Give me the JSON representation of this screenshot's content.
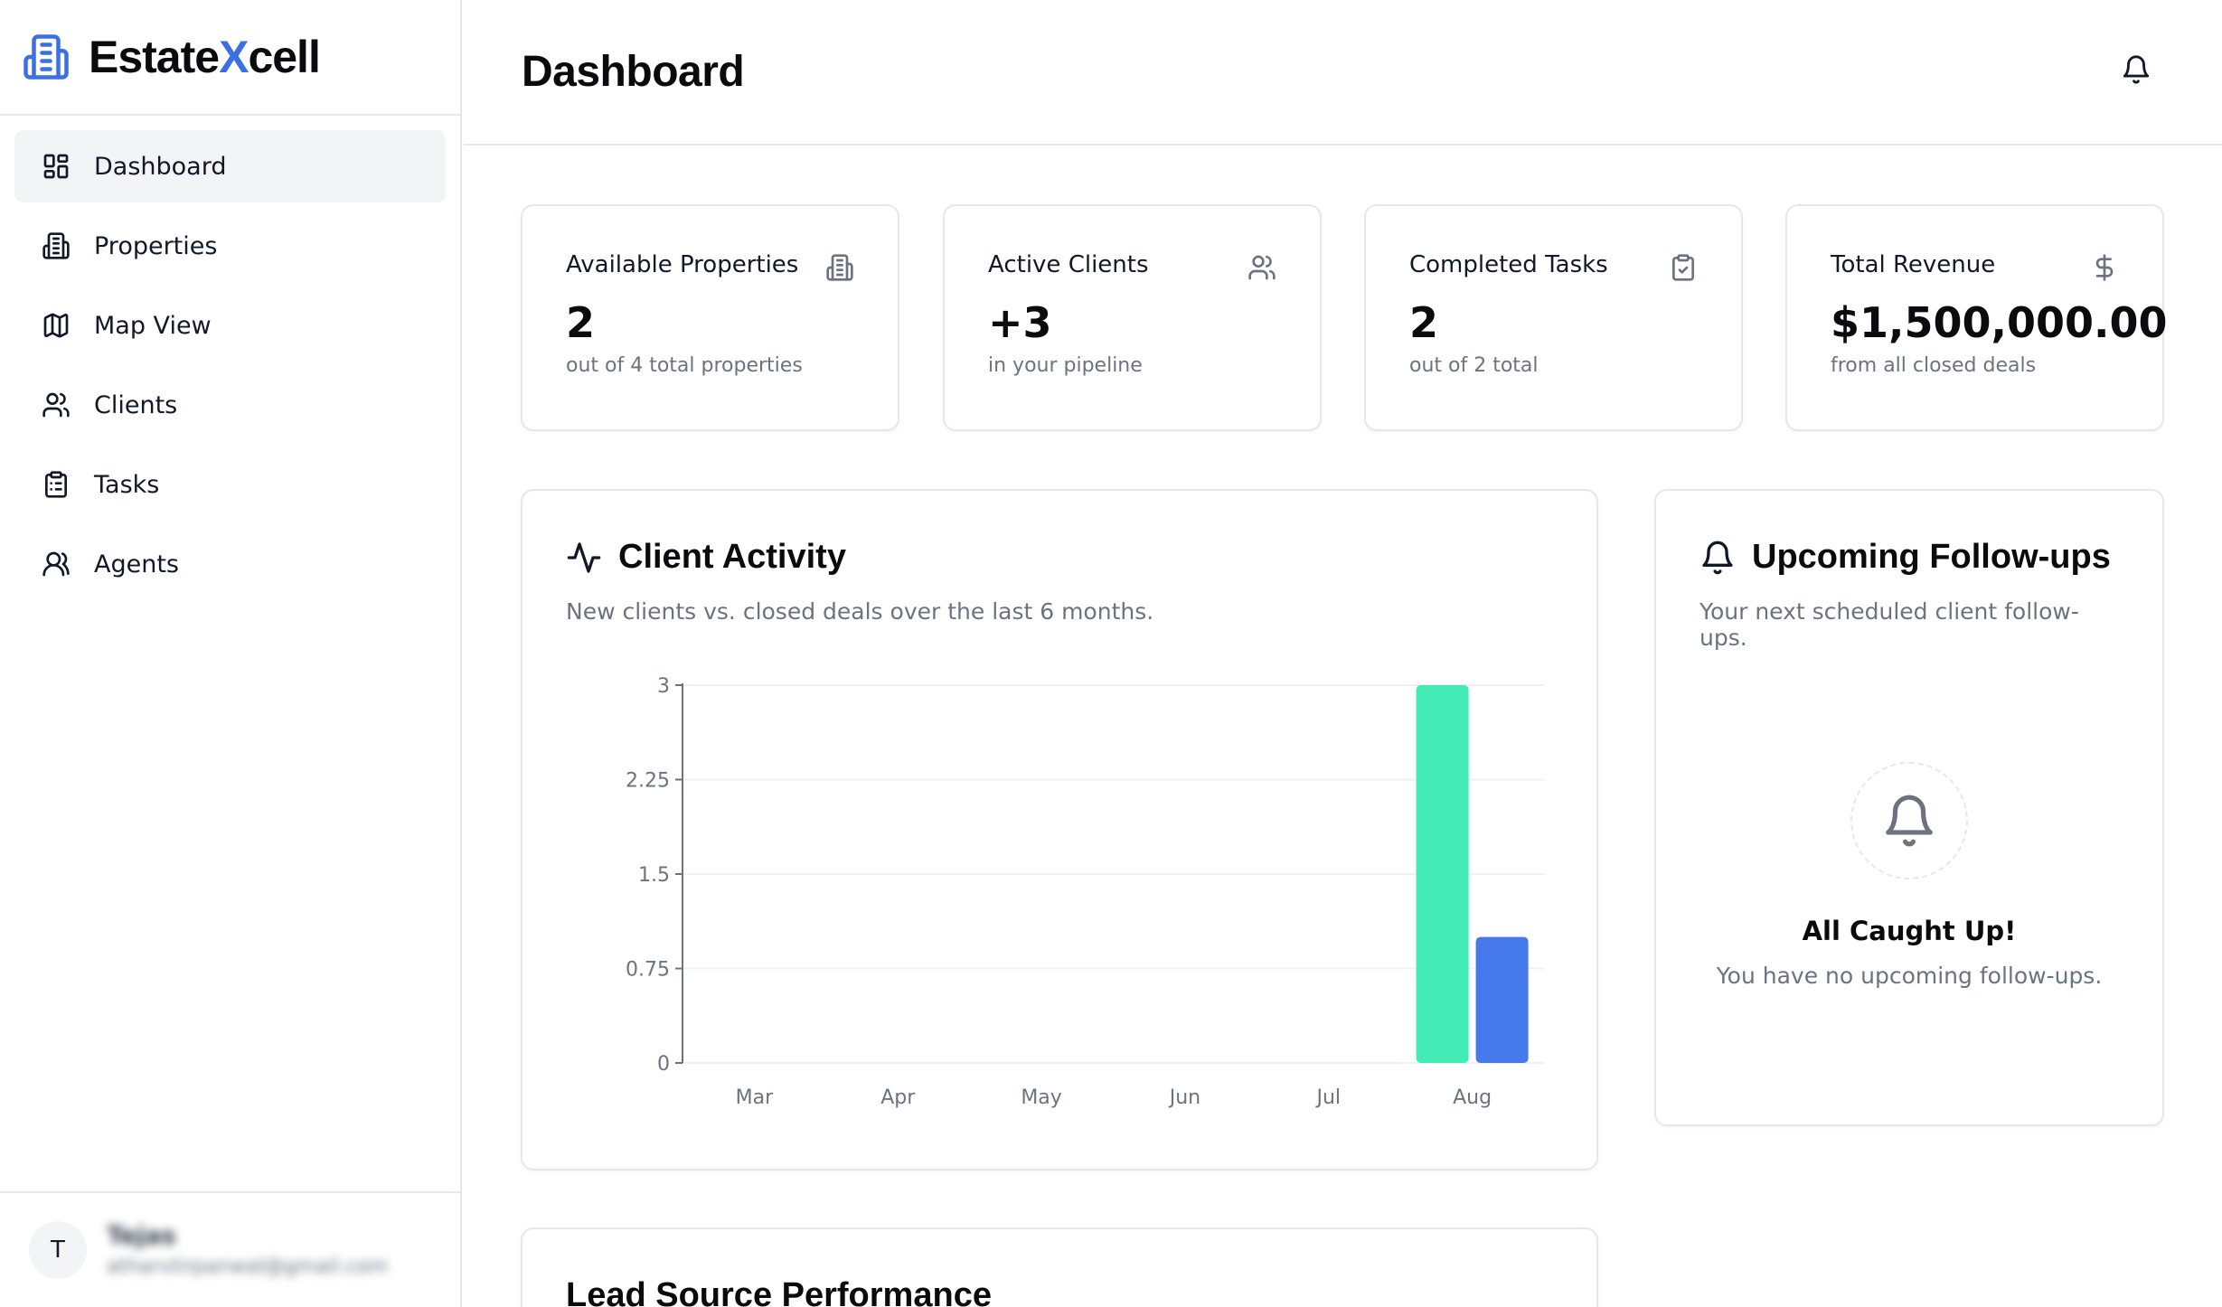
{
  "brand": {
    "name_prefix": "Estate",
    "name_x": "X",
    "name_suffix": "cell"
  },
  "sidebar": {
    "items": [
      {
        "label": "Dashboard",
        "icon": "dashboard-icon",
        "active": true
      },
      {
        "label": "Properties",
        "icon": "building-icon"
      },
      {
        "label": "Map View",
        "icon": "map-icon"
      },
      {
        "label": "Clients",
        "icon": "users-icon"
      },
      {
        "label": "Tasks",
        "icon": "clipboard-icon"
      },
      {
        "label": "Agents",
        "icon": "user-group-icon"
      }
    ]
  },
  "user": {
    "initial": "T",
    "name": "Tejas",
    "email": "atharvtirpanwal@gmail.com"
  },
  "header": {
    "title": "Dashboard"
  },
  "stats": [
    {
      "label": "Available Properties",
      "value": "2",
      "sub": "out of 4 total properties",
      "icon": "building-icon"
    },
    {
      "label": "Active Clients",
      "value": "+3",
      "sub": "in your pipeline",
      "icon": "users-icon"
    },
    {
      "label": "Completed Tasks",
      "value": "2",
      "sub": "out of 2 total",
      "icon": "clipboard-check-icon"
    },
    {
      "label": "Total Revenue",
      "value": "$1,500,000.00",
      "sub": "from all closed deals",
      "icon": "dollar-icon"
    }
  ],
  "activity": {
    "title": "Client Activity",
    "description": "New clients vs. closed deals over the last 6 months."
  },
  "followups": {
    "title": "Upcoming Follow-ups",
    "description": "Your next scheduled client follow-ups.",
    "empty_title": "All Caught Up!",
    "empty_desc": "You have no upcoming follow-ups."
  },
  "lead": {
    "title": "Lead Source Performance"
  },
  "colors": {
    "accent": "#3b6fe4",
    "new_clients": "#43ebb4",
    "closed_deals": "#4579ec"
  },
  "chart_data": {
    "type": "bar",
    "title": "Client Activity",
    "categories": [
      "Mar",
      "Apr",
      "May",
      "Jun",
      "Jul",
      "Aug"
    ],
    "series": [
      {
        "name": "New clients",
        "values": [
          0,
          0,
          0,
          0,
          0,
          3
        ],
        "color": "#43ebb4"
      },
      {
        "name": "Closed deals",
        "values": [
          0,
          0,
          0,
          0,
          0,
          1
        ],
        "color": "#4579ec"
      }
    ],
    "yticks": [
      "0",
      "0.75",
      "1.5",
      "2.25",
      "3"
    ],
    "ylim": [
      0,
      3
    ],
    "xlabel": "",
    "ylabel": "",
    "grid": true
  }
}
